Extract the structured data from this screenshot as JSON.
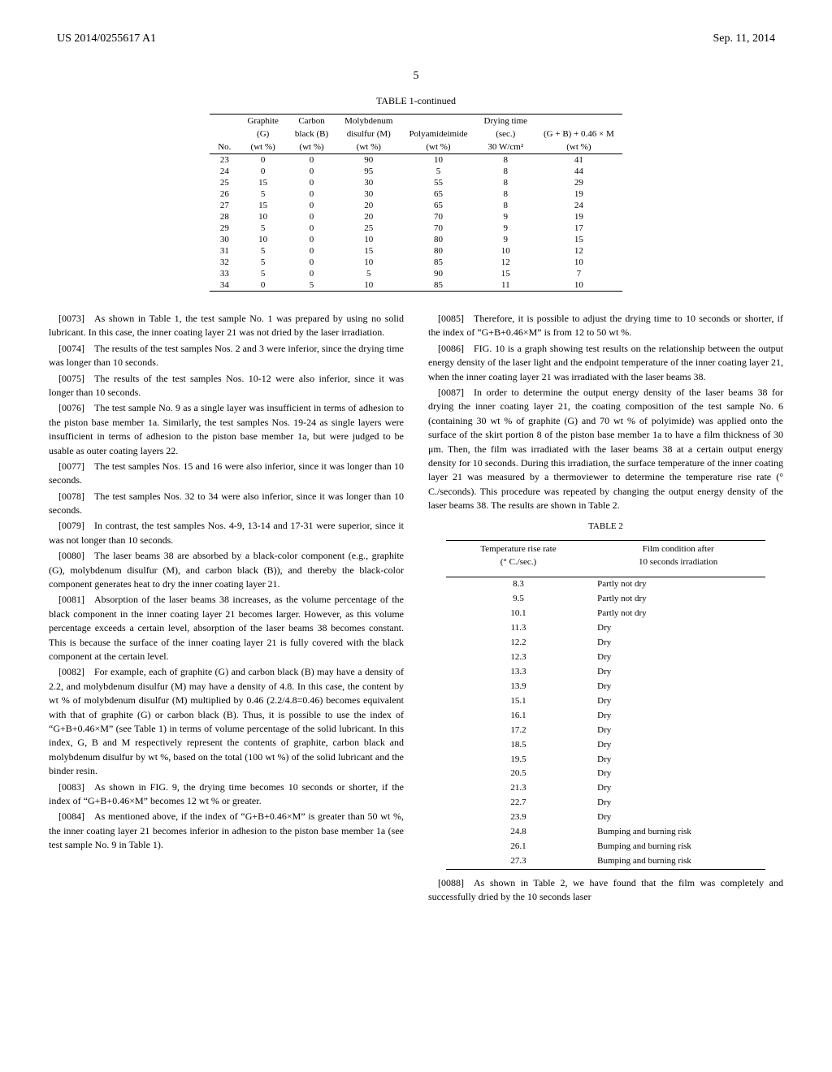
{
  "header": {
    "patent_number": "US 2014/0255617 A1",
    "date": "Sep. 11, 2014"
  },
  "page_number": "5",
  "table1": {
    "title": "TABLE 1-continued",
    "columns": [
      {
        "line1": "",
        "line2": "",
        "line3": "",
        "line4": "No."
      },
      {
        "line1": "",
        "line2": "Graphite",
        "line3": "(G)",
        "line4": "(wt %)"
      },
      {
        "line1": "",
        "line2": "Carbon",
        "line3": "black (B)",
        "line4": "(wt %)"
      },
      {
        "line1": "",
        "line2": "Molybdenum",
        "line3": "disulfur (M)",
        "line4": "(wt %)"
      },
      {
        "line1": "",
        "line2": "",
        "line3": "Polyamideimide",
        "line4": "(wt %)"
      },
      {
        "line1": "",
        "line2": "Drying time",
        "line3": "(sec.)",
        "line4": "30 W/cm²"
      },
      {
        "line1": "",
        "line2": "",
        "line3": "(G + B) + 0.46 × M",
        "line4": "(wt %)"
      }
    ],
    "rows": [
      [
        "23",
        "0",
        "0",
        "90",
        "10",
        "8",
        "41"
      ],
      [
        "24",
        "0",
        "0",
        "95",
        "5",
        "8",
        "44"
      ],
      [
        "25",
        "15",
        "0",
        "30",
        "55",
        "8",
        "29"
      ],
      [
        "26",
        "5",
        "0",
        "30",
        "65",
        "8",
        "19"
      ],
      [
        "27",
        "15",
        "0",
        "20",
        "65",
        "8",
        "24"
      ],
      [
        "28",
        "10",
        "0",
        "20",
        "70",
        "9",
        "19"
      ],
      [
        "29",
        "5",
        "0",
        "25",
        "70",
        "9",
        "17"
      ],
      [
        "30",
        "10",
        "0",
        "10",
        "80",
        "9",
        "15"
      ],
      [
        "31",
        "5",
        "0",
        "15",
        "80",
        "10",
        "12"
      ],
      [
        "32",
        "5",
        "0",
        "10",
        "85",
        "12",
        "10"
      ],
      [
        "33",
        "5",
        "0",
        "5",
        "90",
        "15",
        "7"
      ],
      [
        "34",
        "0",
        "5",
        "10",
        "85",
        "11",
        "10"
      ]
    ]
  },
  "left_column": {
    "p0073": "[0073] As shown in Table 1, the test sample No. 1 was prepared by using no solid lubricant. In this case, the inner coating layer 21 was not dried by the laser irradiation.",
    "p0074": "[0074] The results of the test samples Nos. 2 and 3 were inferior, since the drying time was longer than 10 seconds.",
    "p0075": "[0075] The results of the test samples Nos. 10-12 were also inferior, since it was longer than 10 seconds.",
    "p0076": "[0076] The test sample No. 9 as a single layer was insufficient in terms of adhesion to the piston base member 1a. Similarly, the test samples Nos. 19-24 as single layers were insufficient in terms of adhesion to the piston base member 1a, but were judged to be usable as outer coating layers 22.",
    "p0077": "[0077] The test samples Nos. 15 and 16 were also inferior, since it was longer than 10 seconds.",
    "p0078": "[0078] The test samples Nos. 32 to 34 were also inferior, since it was longer than 10 seconds.",
    "p0079": "[0079] In contrast, the test samples Nos. 4-9, 13-14 and 17-31 were superior, since it was not longer than 10 seconds.",
    "p0080": "[0080] The laser beams 38 are absorbed by a black-color component (e.g., graphite (G), molybdenum disulfur (M), and carbon black (B)), and thereby the black-color component generates heat to dry the inner coating layer 21.",
    "p0081": "[0081] Absorption of the laser beams 38 increases, as the volume percentage of the black component in the inner coating layer 21 becomes larger. However, as this volume percentage exceeds a certain level, absorption of the laser beams 38 becomes constant. This is because the surface of the inner coating layer 21 is fully covered with the black component at the certain level.",
    "p0082": "[0082] For example, each of graphite (G) and carbon black (B) may have a density of 2.2, and molybdenum disulfur (M) may have a density of 4.8. In this case, the content by wt % of molybdenum disulfur (M) multiplied by 0.46 (2.2/4.8=0.46) becomes equivalent with that of graphite (G) or carbon black (B). Thus, it is possible to use the index of “G+B+0.46×M” (see Table 1) in terms of volume percentage of the solid lubricant. In this index, G, B and M respectively represent the contents of graphite, carbon black and molybdenum disulfur by wt %, based on the total (100 wt %) of the solid lubricant and the binder resin.",
    "p0083": "[0083] As shown in FIG. 9, the drying time becomes 10 seconds or shorter, if the index of “G+B+0.46×M” becomes 12 wt % or greater.",
    "p0084": "[0084] As mentioned above, if the index of “G+B+0.46×M” is greater than 50 wt %, the inner coating layer 21 becomes inferior in adhesion to the piston base member 1a (see test sample No. 9 in Table 1)."
  },
  "right_column": {
    "p0085": "[0085] Therefore, it is possible to adjust the drying time to 10 seconds or shorter, if the index of “G+B+0.46×M” is from 12 to 50 wt %.",
    "p0086": "[0086] FIG. 10 is a graph showing test results on the relationship between the output energy density of the laser light and the endpoint temperature of the inner coating layer 21, when the inner coating layer 21 was irradiated with the laser beams 38.",
    "p0087": "[0087] In order to determine the output energy density of the laser beams 38 for drying the inner coating layer 21, the coating composition of the test sample No. 6 (containing 30 wt % of graphite (G) and 70 wt % of polyimide) was applied onto the surface of the skirt portion 8 of the piston base member 1a to have a film thickness of 30 μm. Then, the film was irradiated with the laser beams 38 at a certain output energy density for 10 seconds. During this irradiation, the surface temperature of the inner coating layer 21 was measured by a thermoviewer to determine the temperature rise rate (° C./seconds). This procedure was repeated by changing the output energy density of the laser beams 38. The results are shown in Table 2.",
    "p0088": "[0088] As shown in Table 2, we have found that the film was completely and successfully dried by the 10 seconds laser"
  },
  "table2": {
    "title": "TABLE 2",
    "header": {
      "col1_line1": "Temperature rise rate",
      "col1_line2": "(° C./sec.)",
      "col2_line1": "Film condition after",
      "col2_line2": "10 seconds irradiation"
    },
    "rows": [
      [
        "8.3",
        "Partly not dry"
      ],
      [
        "9.5",
        "Partly not dry"
      ],
      [
        "10.1",
        "Partly not dry"
      ],
      [
        "11.3",
        "Dry"
      ],
      [
        "12.2",
        "Dry"
      ],
      [
        "12.3",
        "Dry"
      ],
      [
        "13.3",
        "Dry"
      ],
      [
        "13.9",
        "Dry"
      ],
      [
        "15.1",
        "Dry"
      ],
      [
        "16.1",
        "Dry"
      ],
      [
        "17.2",
        "Dry"
      ],
      [
        "18.5",
        "Dry"
      ],
      [
        "19.5",
        "Dry"
      ],
      [
        "20.5",
        "Dry"
      ],
      [
        "21.3",
        "Dry"
      ],
      [
        "22.7",
        "Dry"
      ],
      [
        "23.9",
        "Dry"
      ],
      [
        "24.8",
        "Bumping and burning risk"
      ],
      [
        "26.1",
        "Bumping and burning risk"
      ],
      [
        "27.3",
        "Bumping and burning risk"
      ]
    ]
  }
}
